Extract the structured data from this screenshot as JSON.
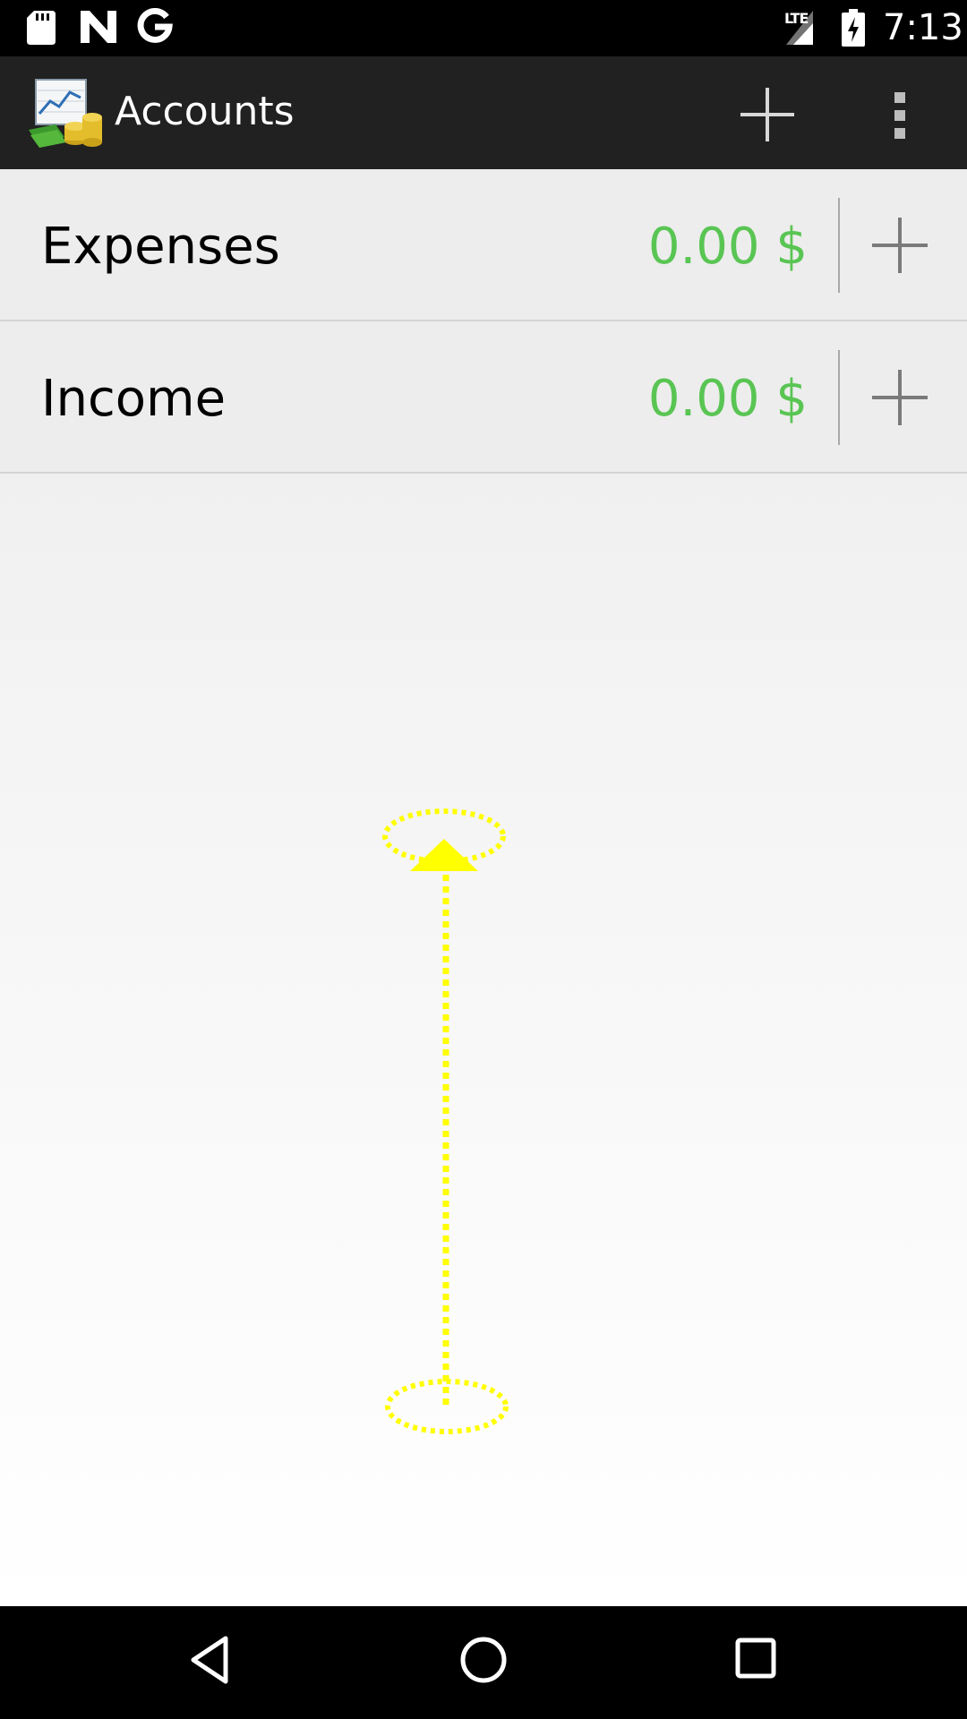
{
  "status_bar": {
    "network": "LTE",
    "time": "7:13",
    "icons": [
      "sd-card-icon",
      "n-notification-icon",
      "google-icon",
      "signal-icon",
      "battery-charging-icon"
    ]
  },
  "action_bar": {
    "title": "Accounts",
    "icons": [
      "app-logo-icon",
      "add-icon",
      "overflow-menu-icon"
    ]
  },
  "accounts": [
    {
      "name": "Expenses",
      "amount": "0.00 $"
    },
    {
      "name": "Income",
      "amount": "0.00 $"
    }
  ],
  "colors": {
    "amount": "#59c553",
    "action_bar": "#212121",
    "gesture": "#ffff00"
  },
  "nav_bar": {
    "icons": [
      "back-icon",
      "home-icon",
      "recents-icon"
    ]
  }
}
